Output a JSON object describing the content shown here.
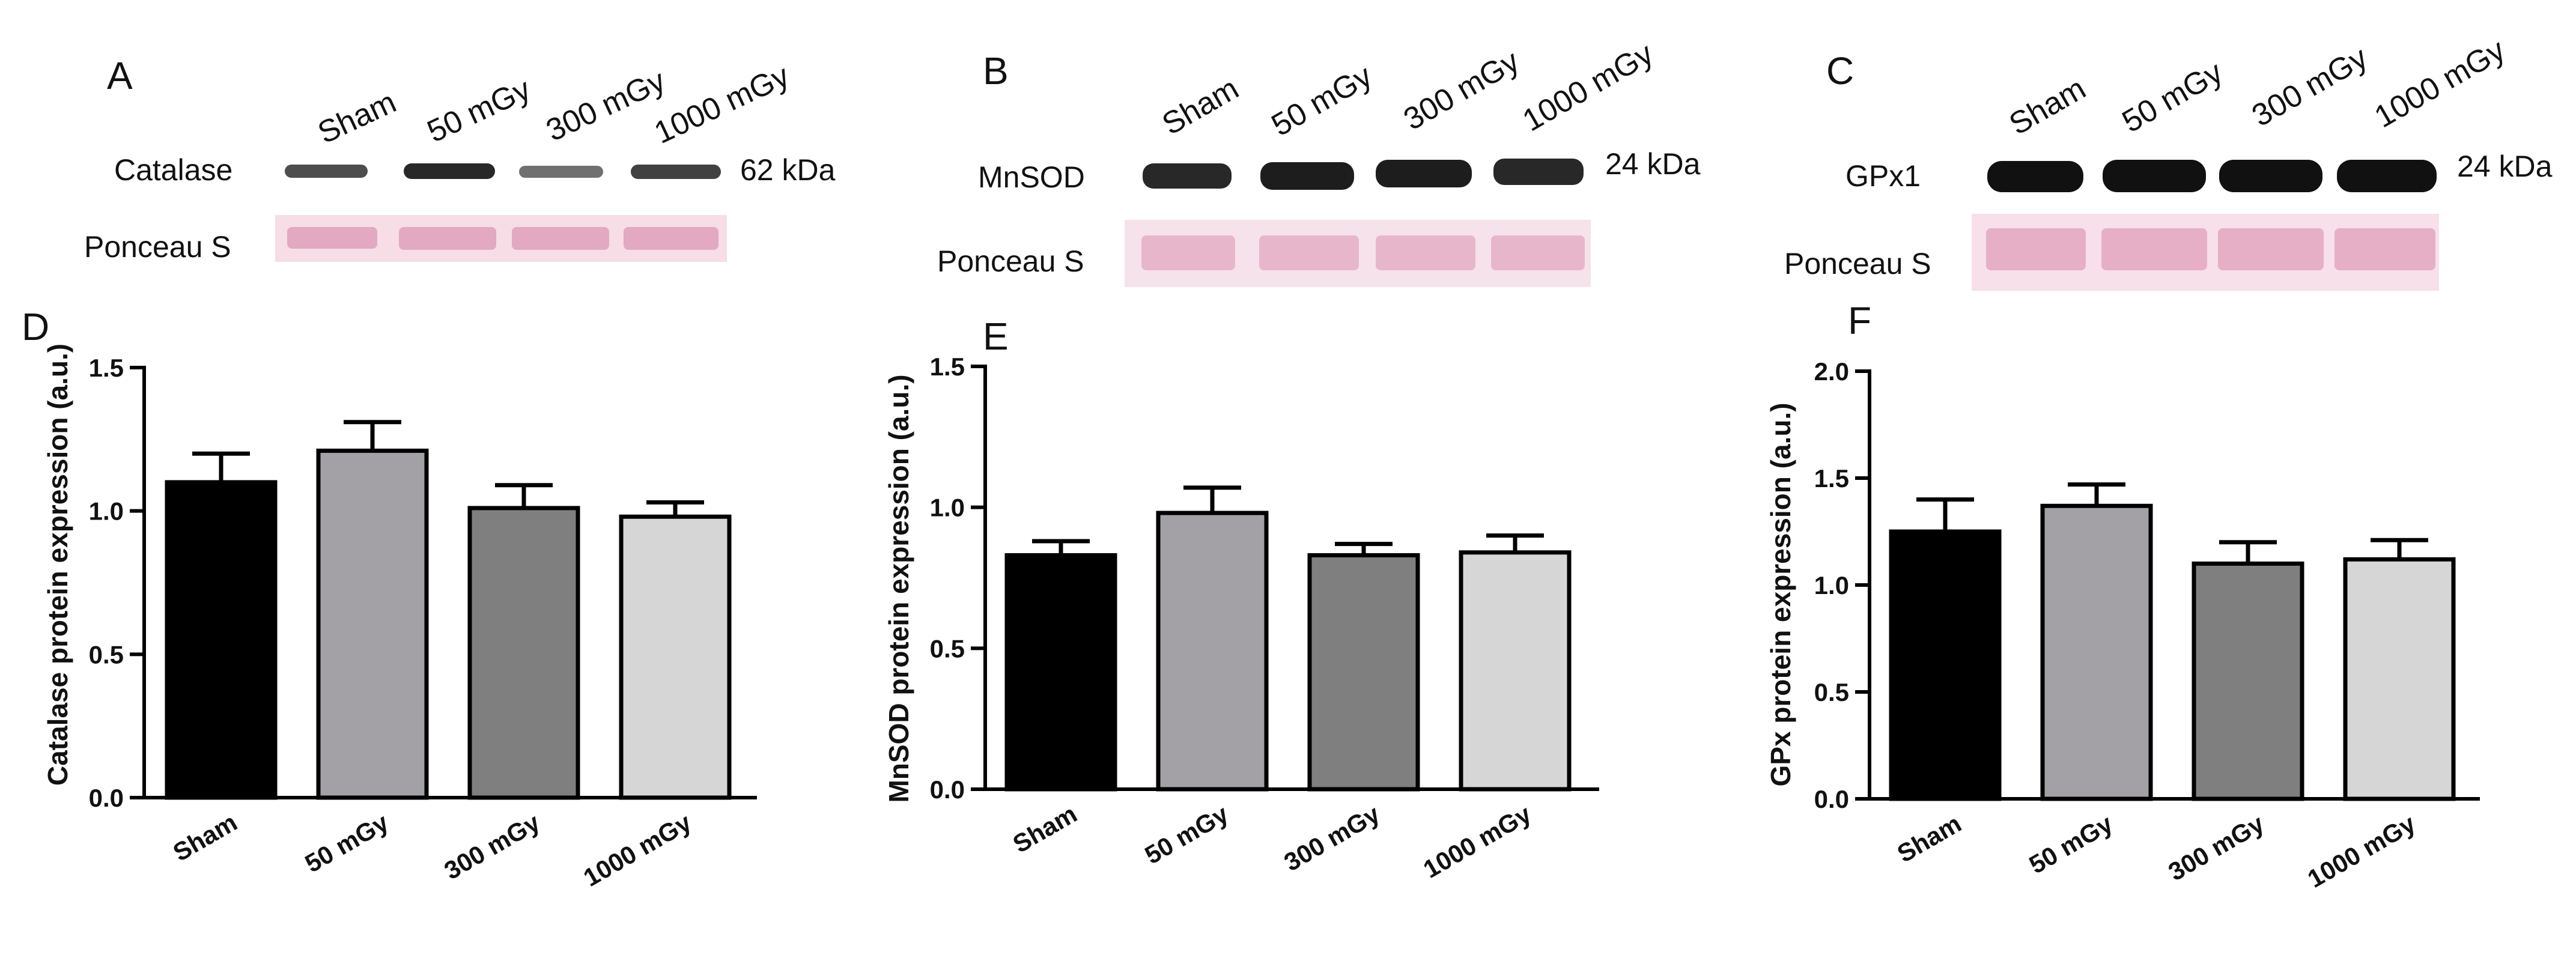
{
  "blots": [
    {
      "letter": "A",
      "lanes": [
        "Sham",
        "50 mGy",
        "300 mGy",
        "1000 mGy"
      ],
      "protein": "Catalase",
      "kda": "62 kDa",
      "loading": "Ponceau S",
      "band_intensity": [
        0.75,
        0.9,
        0.6,
        0.8
      ],
      "colors": {
        "band": "#111111",
        "ponceau_bg": "#f6dde6",
        "ponceau_band": "#e3a8c2"
      }
    },
    {
      "letter": "B",
      "lanes": [
        "Sham",
        "50 mGy",
        "300 mGy",
        "1000 mGy"
      ],
      "protein": "MnSOD",
      "kda": "24 kDa",
      "loading": "Ponceau S",
      "band_intensity": [
        0.9,
        0.95,
        0.95,
        0.9
      ],
      "colors": {
        "band": "#111111",
        "ponceau_bg": "#f6e2ea",
        "ponceau_band": "#e8b6cb"
      }
    },
    {
      "letter": "C",
      "lanes": [
        "Sham",
        "50 mGy",
        "300 mGy",
        "1000 mGy"
      ],
      "protein": "GPx1",
      "kda": "24 kDa",
      "loading": "Ponceau S",
      "band_intensity": [
        1.0,
        1.0,
        1.0,
        1.0
      ],
      "colors": {
        "band": "#111111",
        "ponceau_bg": "#f7e0e9",
        "ponceau_band": "#e6afc6"
      }
    }
  ],
  "chart_data": [
    {
      "letter": "D",
      "type": "bar",
      "categories": [
        "Sham",
        "50 mGy",
        "300 mGy",
        "1000 mGy"
      ],
      "values": [
        1.1,
        1.21,
        1.01,
        0.98
      ],
      "errors": [
        0.1,
        0.1,
        0.08,
        0.05
      ],
      "ylabel": "Catalase protein expression (a.u.)",
      "ylim": [
        0,
        1.5
      ],
      "yticks": [
        0.0,
        0.5,
        1.0,
        1.5
      ],
      "ytick_labels": [
        "0.0",
        "0.5",
        "1.0",
        "1.5"
      ],
      "colors": [
        "#000000",
        "#a3a1a6",
        "#7f7f7f",
        "#d6d6d6"
      ]
    },
    {
      "letter": "E",
      "type": "bar",
      "categories": [
        "Sham",
        "50 mGy",
        "300 mGy",
        "1000 mGy"
      ],
      "values": [
        0.83,
        0.98,
        0.83,
        0.84
      ],
      "errors": [
        0.05,
        0.09,
        0.04,
        0.06
      ],
      "ylabel": "MnSOD protein expression (a.u.)",
      "ylim": [
        0,
        1.5
      ],
      "yticks": [
        0.0,
        0.5,
        1.0,
        1.5
      ],
      "ytick_labels": [
        "0.0",
        "0.5",
        "1.0",
        "1.5"
      ],
      "colors": [
        "#000000",
        "#a3a1a6",
        "#7f7f7f",
        "#d6d6d6"
      ]
    },
    {
      "letter": "F",
      "type": "bar",
      "categories": [
        "Sham",
        "50 mGy",
        "300 mGy",
        "1000 mGy"
      ],
      "values": [
        1.25,
        1.37,
        1.1,
        1.12
      ],
      "errors": [
        0.15,
        0.1,
        0.1,
        0.09
      ],
      "ylabel": "GPx protein expression (a.u.)",
      "ylim": [
        0,
        2.0
      ],
      "yticks": [
        0.0,
        0.5,
        1.0,
        1.5,
        2.0
      ],
      "ytick_labels": [
        "0.0",
        "0.5",
        "1.0",
        "1.5",
        "2.0"
      ],
      "colors": [
        "#000000",
        "#a3a1a6",
        "#7f7f7f",
        "#d6d6d6"
      ]
    }
  ]
}
